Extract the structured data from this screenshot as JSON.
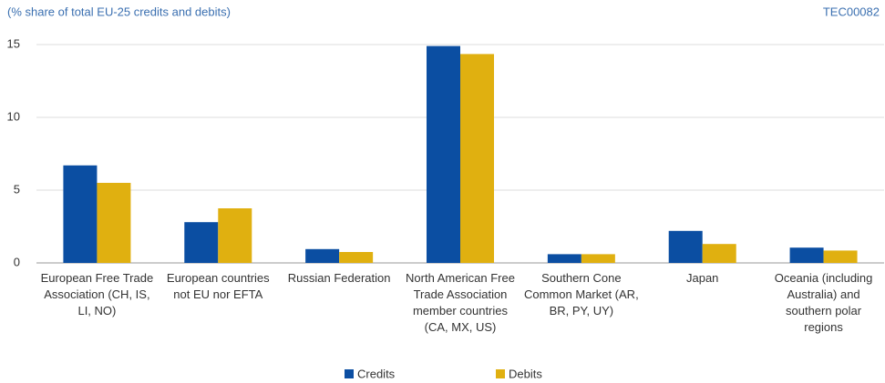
{
  "chart_data": {
    "type": "bar",
    "title": "(% share of total EU-25 credits and debits)",
    "note": "TEC00082",
    "categories": [
      "European Free Trade Association (CH, IS, LI, NO)",
      "European countries not EU nor EFTA",
      "Russian Federation",
      "North American Free Trade Association member countries (CA, MX, US)",
      "Southern Cone Common Market (AR, BR, PY, UY)",
      "Japan",
      "Oceania (including Australia) and southern polar regions"
    ],
    "series": [
      {
        "name": "Credits",
        "color": "#0b4ea2",
        "values": [
          6.7,
          2.8,
          0.95,
          14.9,
          0.6,
          2.2,
          1.05
        ]
      },
      {
        "name": "Debits",
        "color": "#e0b010",
        "values": [
          5.5,
          3.75,
          0.75,
          14.35,
          0.6,
          1.3,
          0.85
        ]
      }
    ],
    "ylim": [
      0,
      15
    ],
    "yticks": [
      0,
      5,
      10,
      15
    ],
    "grid": true,
    "legend": "bottom"
  }
}
